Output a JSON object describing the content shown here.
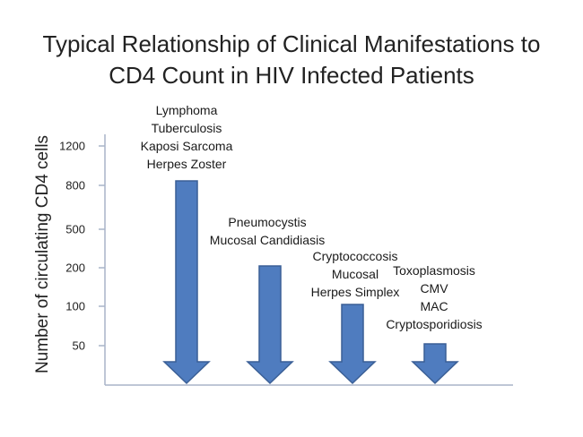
{
  "title_line1": "Typical Relationship of Clinical Manifestations to",
  "title_line2": "CD4 Count in HIV Infected Patients",
  "y_axis_label": "Number of circulating CD4 cells",
  "y_ticks": [
    "1200",
    "800",
    "500",
    "200",
    "100",
    "50"
  ],
  "arrow_color": "#4f7cbf",
  "arrow_stroke": "#3a5f96",
  "axis_color": "#a8b4c8",
  "groups": [
    {
      "lines": [
        "Lymphoma",
        "Tuberculosis",
        "Kaposi Sarcoma",
        "Herpes Zoster"
      ],
      "start_tick": "800"
    },
    {
      "lines": [
        "Pneumocystis",
        "Mucosal Candidiasis"
      ],
      "start_tick": "200"
    },
    {
      "lines": [
        "Cryptococcosis",
        "Mucosal",
        "Herpes Simplex"
      ],
      "start_tick": "100"
    },
    {
      "lines": [
        "Toxoplasmosis",
        "CMV",
        "MAC",
        "Cryptosporidiosis"
      ],
      "start_tick": "50"
    }
  ]
}
